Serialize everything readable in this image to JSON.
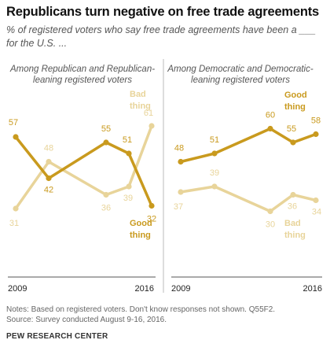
{
  "title": "Republicans turn negative on free trade agreements",
  "subtitle": "% of registered voters who say free trade agreements have been a ___ for the U.S. ...",
  "notes": "Notes: Based on registered voters. Don't know responses not shown. Q55F2.",
  "source": "Source: Survey conducted August 9-16, 2016.",
  "brand": "PEW RESEARCH CENTER",
  "colors": {
    "good": "#c99a1e",
    "bad": "#e8d49a",
    "divider": "#bbbbbb",
    "axis": "#555555"
  },
  "chart_data": [
    {
      "type": "line",
      "title": "Among Republican and Republican-leaning registered voters",
      "x_labels": [
        "2009",
        "2016"
      ],
      "series": [
        {
          "name": "Good thing",
          "values": [
            57,
            42,
            55,
            51,
            32
          ]
        },
        {
          "name": "Bad thing",
          "values": [
            31,
            48,
            36,
            39,
            61
          ]
        }
      ]
    },
    {
      "type": "line",
      "title": "Among Democratic and Democratic-leaning registered voters",
      "x_labels": [
        "2009",
        "2016"
      ],
      "series": [
        {
          "name": "Good thing",
          "values": [
            48,
            51,
            60,
            55,
            58
          ]
        },
        {
          "name": "Bad thing",
          "values": [
            37,
            39,
            30,
            36,
            34
          ]
        }
      ]
    }
  ]
}
